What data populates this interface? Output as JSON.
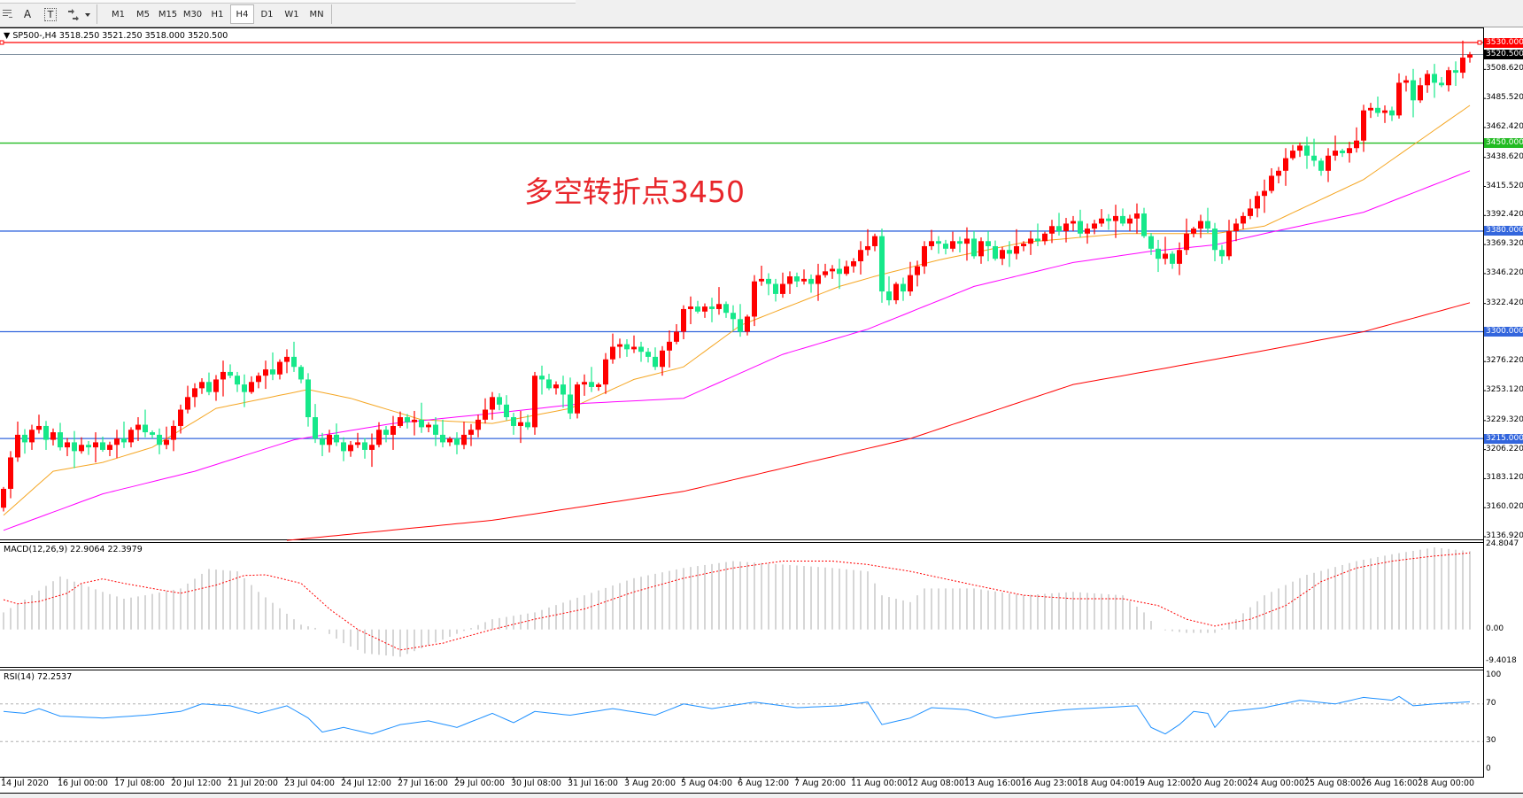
{
  "toolbar": {
    "tools": [
      {
        "icon": "grid-properties-icon"
      },
      {
        "label": "A",
        "icon": "text-tool-icon"
      },
      {
        "label": "T",
        "icon": "text-label-icon"
      },
      {
        "icon": "arrows-tool-icon"
      }
    ],
    "timeframes": [
      "M1",
      "M5",
      "M15",
      "M30",
      "H1",
      "H4",
      "D1",
      "W1",
      "MN"
    ],
    "active_timeframe": "H4"
  },
  "chart_header": {
    "symbol": "SP500-,H4",
    "ohlc": "3518.250 3521.250 3518.000 3520.500"
  },
  "annotation": "多空转折点3450",
  "colors": {
    "bull": "#ff0000",
    "bear": "#16e88a",
    "ma_fast": "#f5a623",
    "ma_mid": "#ff00ff",
    "ma_slow": "#ff0000",
    "resistance": "#ff0000",
    "pivot": "#22bb22",
    "support": "#3366dd",
    "macd_hist": "#c0c0c0",
    "macd_signal": "#ff0000",
    "rsi": "#1e90ff"
  },
  "chart_data": {
    "type": "candlestick",
    "price_axis": {
      "ylim": [
        3136.92,
        3530.0
      ],
      "ticks": [
        "3508.620",
        "3485.520",
        "3462.420",
        "3438.620",
        "3415.520",
        "3392.420",
        "3369.320",
        "3346.220",
        "3322.420",
        "3276.220",
        "3253.120",
        "3229.320",
        "3206.220",
        "3183.120",
        "3160.020",
        "3136.920"
      ],
      "tick_values": [
        3508.62,
        3485.52,
        3462.42,
        3438.62,
        3415.52,
        3392.42,
        3369.32,
        3346.22,
        3322.42,
        3276.22,
        3253.12,
        3229.32,
        3206.22,
        3183.12,
        3160.02,
        3136.92
      ]
    },
    "x_labels": [
      "14 Jul 2020",
      "16 Jul 00:00",
      "17 Jul 08:00",
      "20 Jul 12:00",
      "21 Jul 20:00",
      "23 Jul 04:00",
      "24 Jul 12:00",
      "27 Jul 16:00",
      "29 Jul 00:00",
      "30 Jul 08:00",
      "31 Jul 16:00",
      "3 Aug 20:00",
      "5 Aug 04:00",
      "6 Aug 12:00",
      "7 Aug 20:00",
      "11 Aug 00:00",
      "12 Aug 08:00",
      "13 Aug 16:00",
      "16 Aug 23:00",
      "18 Aug 04:00",
      "19 Aug 12:00",
      "20 Aug 20:00",
      "24 Aug 00:00",
      "25 Aug 08:00",
      "26 Aug 16:00",
      "28 Aug 00:00"
    ],
    "x_label_every_bars": 8,
    "closes": [
      3175,
      3200,
      3218,
      3212,
      3222,
      3225,
      3214,
      3220,
      3208,
      3212,
      3205,
      3210,
      3208,
      3212,
      3206,
      3210,
      3215,
      3212,
      3222,
      3226,
      3220,
      3218,
      3210,
      3214,
      3225,
      3238,
      3248,
      3255,
      3260,
      3252,
      3262,
      3268,
      3265,
      3258,
      3252,
      3260,
      3265,
      3270,
      3266,
      3276,
      3280,
      3272,
      3262,
      3232,
      3215,
      3210,
      3218,
      3212,
      3205,
      3210,
      3212,
      3206,
      3210,
      3222,
      3218,
      3225,
      3232,
      3228,
      3230,
      3224,
      3226,
      3218,
      3212,
      3215,
      3210,
      3218,
      3222,
      3230,
      3238,
      3248,
      3242,
      3232,
      3225,
      3228,
      3224,
      3265,
      3262,
      3255,
      3258,
      3250,
      3235,
      3258,
      3260,
      3256,
      3258,
      3278,
      3288,
      3290,
      3286,
      3288,
      3284,
      3280,
      3272,
      3285,
      3292,
      3300,
      3318,
      3320,
      3316,
      3320,
      3318,
      3322,
      3315,
      3310,
      3300,
      3312,
      3340,
      3342,
      3338,
      3330,
      3338,
      3344,
      3340,
      3342,
      3338,
      3345,
      3348,
      3350,
      3346,
      3352,
      3356,
      3365,
      3368,
      3376,
      3332,
      3325,
      3338,
      3332,
      3345,
      3352,
      3368,
      3372,
      3370,
      3366,
      3372,
      3370,
      3374,
      3360,
      3372,
      3368,
      3358,
      3365,
      3362,
      3368,
      3370,
      3374,
      3372,
      3378,
      3384,
      3380,
      3386,
      3388,
      3378,
      3382,
      3386,
      3390,
      3388,
      3392,
      3386,
      3390,
      3394,
      3376,
      3366,
      3358,
      3362,
      3354,
      3365,
      3378,
      3382,
      3388,
      3382,
      3365,
      3360,
      3380,
      3386,
      3392,
      3398,
      3408,
      3412,
      3424,
      3428,
      3438,
      3444,
      3448,
      3440,
      3436,
      3428,
      3440,
      3444,
      3442,
      3446,
      3452,
      3476,
      3478,
      3474,
      3476,
      3472,
      3498,
      3500,
      3484,
      3496,
      3505,
      3498,
      3496,
      3508,
      3506,
      3518,
      3520.5
    ],
    "first_open": 3160,
    "moving_averages": [
      {
        "color_key": "ma_fast",
        "points": [
          [
            0,
            3154
          ],
          [
            7,
            3189
          ],
          [
            14,
            3196
          ],
          [
            21,
            3208
          ],
          [
            30,
            3239
          ],
          [
            43,
            3254
          ],
          [
            49,
            3247
          ],
          [
            59,
            3230
          ],
          [
            69,
            3227
          ],
          [
            80,
            3239
          ],
          [
            89,
            3262
          ],
          [
            96,
            3272
          ],
          [
            104,
            3305
          ],
          [
            118,
            3336
          ],
          [
            123,
            3344
          ],
          [
            132,
            3357
          ],
          [
            144,
            3371
          ],
          [
            158,
            3378
          ],
          [
            171,
            3378
          ],
          [
            178,
            3384
          ],
          [
            192,
            3421
          ],
          [
            207,
            3480
          ]
        ]
      },
      {
        "color_key": "ma_mid",
        "points": [
          [
            0,
            3142
          ],
          [
            14,
            3171
          ],
          [
            27,
            3189
          ],
          [
            41,
            3214
          ],
          [
            55,
            3227
          ],
          [
            69,
            3235
          ],
          [
            82,
            3243
          ],
          [
            96,
            3247
          ],
          [
            110,
            3282
          ],
          [
            122,
            3302
          ],
          [
            137,
            3336
          ],
          [
            151,
            3355
          ],
          [
            162,
            3364
          ],
          [
            171,
            3369
          ],
          [
            178,
            3378
          ],
          [
            192,
            3395
          ],
          [
            207,
            3428
          ]
        ]
      },
      {
        "color_key": "ma_slow",
        "points": [
          [
            40,
            3134
          ],
          [
            69,
            3150
          ],
          [
            96,
            3173
          ],
          [
            128,
            3215
          ],
          [
            151,
            3258
          ],
          [
            178,
            3285
          ],
          [
            192,
            3300
          ],
          [
            207,
            3323
          ]
        ]
      }
    ],
    "horizontal_lines": [
      {
        "price": 3530.0,
        "label": "3530.000",
        "color_key": "resistance"
      },
      {
        "price": 3520.5,
        "label": "3520.500",
        "color": "#000000",
        "line_color": "#8090a0"
      },
      {
        "price": 3450.0,
        "label": "3450.000",
        "color_key": "pivot"
      },
      {
        "price": 3380.0,
        "label": "3380.000",
        "color_key": "support"
      },
      {
        "price": 3300.0,
        "label": "3300.000",
        "color_key": "support"
      },
      {
        "price": 3215.0,
        "label": "3215.000",
        "color_key": "support"
      }
    ],
    "macd": {
      "title": "MACD(12,26,9) 22.9064 22.3979",
      "ylim": [
        -9.4018,
        24.8047
      ],
      "ticks": [
        "24.8047",
        "0.00",
        "-9.4018"
      ],
      "tick_values": [
        24.8047,
        0,
        -9.4018
      ],
      "histogram": [
        [
          0,
          5
        ],
        [
          4,
          10
        ],
        [
          8,
          15.5
        ],
        [
          10,
          14
        ],
        [
          14,
          11
        ],
        [
          17,
          9
        ],
        [
          20,
          10
        ],
        [
          25,
          12
        ],
        [
          29,
          17.7
        ],
        [
          33,
          17
        ],
        [
          36,
          11
        ],
        [
          42,
          1.4
        ],
        [
          45,
          0
        ],
        [
          48,
          -4
        ],
        [
          51,
          -7
        ],
        [
          56,
          -8
        ],
        [
          62,
          -3
        ],
        [
          69,
          3
        ],
        [
          75,
          5
        ],
        [
          82,
          10
        ],
        [
          89,
          15
        ],
        [
          96,
          18
        ],
        [
          103,
          20
        ],
        [
          110,
          19
        ],
        [
          117,
          18
        ],
        [
          122,
          17
        ],
        [
          124,
          10
        ],
        [
          128,
          8
        ],
        [
          130,
          12
        ],
        [
          137,
          12
        ],
        [
          144,
          10
        ],
        [
          151,
          11
        ],
        [
          158,
          10
        ],
        [
          161,
          5
        ],
        [
          163,
          0
        ],
        [
          167,
          -1
        ],
        [
          171,
          -1
        ],
        [
          174,
          3
        ],
        [
          178,
          10
        ],
        [
          184,
          16
        ],
        [
          191,
          20
        ],
        [
          196,
          22
        ],
        [
          202,
          24
        ],
        [
          207,
          22.9
        ]
      ],
      "signal": [
        [
          0,
          8.7
        ],
        [
          2,
          7.5
        ],
        [
          5,
          8.2
        ],
        [
          9,
          10.6
        ],
        [
          11,
          13.5
        ],
        [
          14,
          14.8
        ],
        [
          17,
          13.5
        ],
        [
          21,
          12
        ],
        [
          25,
          10.6
        ],
        [
          30,
          13
        ],
        [
          34,
          15.8
        ],
        [
          37,
          16
        ],
        [
          42,
          13.5
        ],
        [
          46,
          6
        ],
        [
          50,
          0
        ],
        [
          56,
          -6
        ],
        [
          62,
          -4
        ],
        [
          69,
          0
        ],
        [
          75,
          3
        ],
        [
          82,
          6
        ],
        [
          89,
          11
        ],
        [
          96,
          15
        ],
        [
          103,
          18
        ],
        [
          110,
          20
        ],
        [
          117,
          20
        ],
        [
          122,
          19
        ],
        [
          128,
          17
        ],
        [
          137,
          13
        ],
        [
          144,
          10
        ],
        [
          151,
          9
        ],
        [
          158,
          9
        ],
        [
          163,
          7
        ],
        [
          167,
          3
        ],
        [
          171,
          1
        ],
        [
          176,
          3
        ],
        [
          181,
          7
        ],
        [
          186,
          14
        ],
        [
          191,
          18
        ],
        [
          196,
          20
        ],
        [
          202,
          21.5
        ],
        [
          207,
          22.4
        ]
      ]
    },
    "rsi": {
      "title": "RSI(14) 72.2537",
      "ylim": [
        0,
        100
      ],
      "ticks": [
        "100",
        "70",
        "30",
        "0"
      ],
      "tick_values": [
        100,
        70,
        30,
        0
      ],
      "levels": [
        70,
        30
      ],
      "values": [
        [
          0,
          62
        ],
        [
          3,
          60
        ],
        [
          5,
          65
        ],
        [
          8,
          57
        ],
        [
          14,
          55
        ],
        [
          20,
          58
        ],
        [
          25,
          62
        ],
        [
          28,
          70
        ],
        [
          32,
          68
        ],
        [
          36,
          60
        ],
        [
          40,
          68
        ],
        [
          43,
          55
        ],
        [
          45,
          40
        ],
        [
          48,
          45
        ],
        [
          52,
          38
        ],
        [
          56,
          48
        ],
        [
          60,
          52
        ],
        [
          64,
          45
        ],
        [
          69,
          60
        ],
        [
          72,
          50
        ],
        [
          75,
          62
        ],
        [
          80,
          58
        ],
        [
          86,
          65
        ],
        [
          92,
          58
        ],
        [
          96,
          70
        ],
        [
          100,
          65
        ],
        [
          106,
          72
        ],
        [
          112,
          66
        ],
        [
          118,
          68
        ],
        [
          122,
          72
        ],
        [
          124,
          48
        ],
        [
          128,
          55
        ],
        [
          131,
          66
        ],
        [
          136,
          64
        ],
        [
          140,
          55
        ],
        [
          145,
          60
        ],
        [
          150,
          64
        ],
        [
          155,
          66
        ],
        [
          160,
          68
        ],
        [
          162,
          45
        ],
        [
          164,
          38
        ],
        [
          166,
          48
        ],
        [
          168,
          62
        ],
        [
          170,
          60
        ],
        [
          171,
          45
        ],
        [
          173,
          62
        ],
        [
          178,
          66
        ],
        [
          183,
          74
        ],
        [
          188,
          70
        ],
        [
          192,
          77
        ],
        [
          196,
          74
        ],
        [
          197,
          78
        ],
        [
          199,
          68
        ],
        [
          202,
          70
        ],
        [
          207,
          72.25
        ]
      ]
    }
  }
}
